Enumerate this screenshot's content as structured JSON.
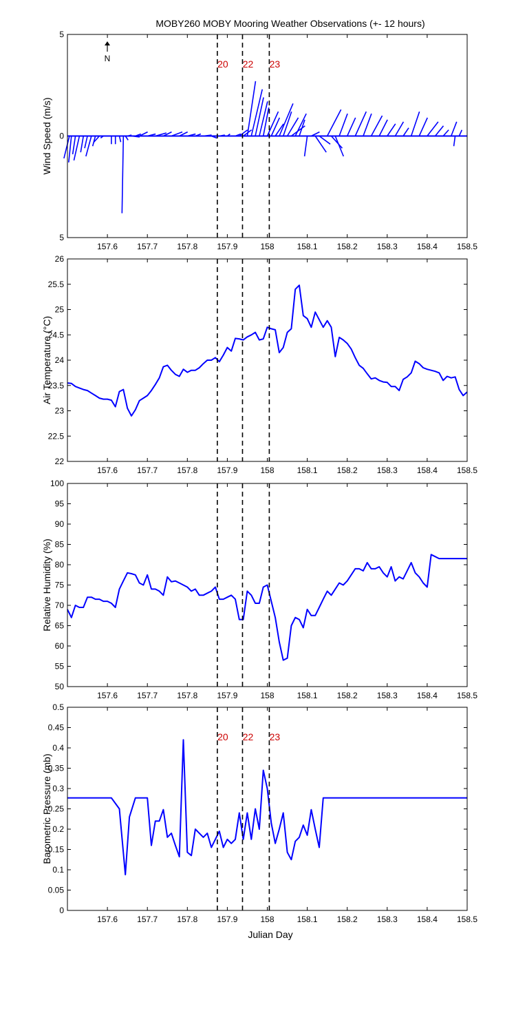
{
  "title": "MOBY260 MOBY Mooring Weather Observations (+- 12 hours)",
  "colors": {
    "series": "#0000ff",
    "marker_label": "#cc0000",
    "axis": "#000000"
  },
  "x_axis": {
    "label": "Julian Day",
    "range": [
      157.5,
      158.5
    ],
    "ticks": [
      "157.6",
      "157.7",
      "157.8",
      "157.9",
      "158",
      "158.1",
      "158.2",
      "158.3",
      "158.4",
      "158.5"
    ]
  },
  "markers": [
    {
      "x": 157.875,
      "label": "20"
    },
    {
      "x": 157.938,
      "label": "22"
    },
    {
      "x": 158.005,
      "label": "23"
    }
  ],
  "north_label": "N",
  "chart_data": [
    {
      "type": "quiver",
      "ylabel": "Wind Speed (m/s)",
      "ylim": [
        -5,
        5
      ],
      "y_tick_labels": [
        "5",
        "0",
        "5"
      ],
      "show_marker_labels": true,
      "vectors": [
        {
          "x": 157.505,
          "u": -0.2,
          "v": -1.1
        },
        {
          "x": 157.51,
          "u": -0.1,
          "v": -1.3
        },
        {
          "x": 157.52,
          "u": -0.1,
          "v": -0.9
        },
        {
          "x": 157.53,
          "u": -0.2,
          "v": -1.2
        },
        {
          "x": 157.54,
          "u": -0.1,
          "v": -0.8
        },
        {
          "x": 157.55,
          "u": -0.1,
          "v": -0.6
        },
        {
          "x": 157.56,
          "u": -0.2,
          "v": -1.0
        },
        {
          "x": 157.57,
          "u": -0.1,
          "v": -0.5
        },
        {
          "x": 157.58,
          "u": -0.2,
          "v": -0.3
        },
        {
          "x": 157.59,
          "u": -0.1,
          "v": -0.1
        },
        {
          "x": 157.6,
          "u": -0.1,
          "v": 0.0
        },
        {
          "x": 157.61,
          "u": 0.0,
          "v": -0.4
        },
        {
          "x": 157.62,
          "u": 0.0,
          "v": -0.4
        },
        {
          "x": 157.63,
          "u": 0.05,
          "v": -0.3
        },
        {
          "x": 157.64,
          "u": -0.05,
          "v": -3.8
        },
        {
          "x": 157.645,
          "u": 0.1,
          "v": -0.2
        },
        {
          "x": 157.65,
          "u": 0.15,
          "v": 0.05
        },
        {
          "x": 157.66,
          "u": 0.3,
          "v": -0.05
        },
        {
          "x": 157.67,
          "u": 0.2,
          "v": 0.1
        },
        {
          "x": 157.68,
          "u": 0.3,
          "v": 0.2
        },
        {
          "x": 157.7,
          "u": 0.3,
          "v": 0.1
        },
        {
          "x": 157.72,
          "u": 0.4,
          "v": 0.15
        },
        {
          "x": 157.74,
          "u": 0.3,
          "v": 0.2
        },
        {
          "x": 157.76,
          "u": 0.4,
          "v": 0.2
        },
        {
          "x": 157.78,
          "u": 0.3,
          "v": 0.2
        },
        {
          "x": 157.8,
          "u": 0.3,
          "v": 0.1
        },
        {
          "x": 157.82,
          "u": 0.2,
          "v": 0.1
        },
        {
          "x": 157.84,
          "u": 0.3,
          "v": 0.05
        },
        {
          "x": 157.86,
          "u": 0.2,
          "v": -0.1
        },
        {
          "x": 157.88,
          "u": 0.2,
          "v": 0.05
        },
        {
          "x": 157.9,
          "u": 0.1,
          "v": 0.1
        },
        {
          "x": 157.92,
          "u": 0.2,
          "v": 0.1
        },
        {
          "x": 157.93,
          "u": 0.3,
          "v": 0.3
        },
        {
          "x": 157.94,
          "u": 0.3,
          "v": 0.3
        },
        {
          "x": 157.95,
          "u": 0.3,
          "v": 2.7
        },
        {
          "x": 157.96,
          "u": 0.4,
          "v": 2.3
        },
        {
          "x": 157.97,
          "u": 0.3,
          "v": 1.9
        },
        {
          "x": 157.98,
          "u": 0.3,
          "v": 1.7
        },
        {
          "x": 157.99,
          "u": 0.2,
          "v": 1.4
        },
        {
          "x": 158.0,
          "u": 0.4,
          "v": 1.2
        },
        {
          "x": 158.01,
          "u": 0.3,
          "v": 0.9
        },
        {
          "x": 158.02,
          "u": 0.3,
          "v": 0.6
        },
        {
          "x": 158.03,
          "u": 0.5,
          "v": 1.6
        },
        {
          "x": 158.04,
          "u": 0.3,
          "v": 1.2
        },
        {
          "x": 158.05,
          "u": 0.4,
          "v": 0.9
        },
        {
          "x": 158.06,
          "u": 0.5,
          "v": 0.5
        },
        {
          "x": 158.07,
          "u": 0.4,
          "v": 1.1
        },
        {
          "x": 158.08,
          "u": 0.2,
          "v": 0.8
        },
        {
          "x": 158.1,
          "u": -0.1,
          "v": -1.0
        },
        {
          "x": 158.11,
          "u": 0.3,
          "v": 0.2
        },
        {
          "x": 158.12,
          "u": 0.4,
          "v": -0.8
        },
        {
          "x": 158.13,
          "u": 0.4,
          "v": -0.4
        },
        {
          "x": 158.15,
          "u": 0.5,
          "v": 1.3
        },
        {
          "x": 158.16,
          "u": 0.4,
          "v": -0.6
        },
        {
          "x": 158.17,
          "u": 0.3,
          "v": -1.0
        },
        {
          "x": 158.18,
          "u": 0.3,
          "v": 1.1
        },
        {
          "x": 158.2,
          "u": 0.3,
          "v": 0.9
        },
        {
          "x": 158.22,
          "u": 0.4,
          "v": 1.2
        },
        {
          "x": 158.24,
          "u": 0.3,
          "v": 1.1
        },
        {
          "x": 158.26,
          "u": 0.4,
          "v": 1.0
        },
        {
          "x": 158.28,
          "u": 0.3,
          "v": 0.8
        },
        {
          "x": 158.3,
          "u": 0.3,
          "v": 0.6
        },
        {
          "x": 158.32,
          "u": 0.3,
          "v": 0.7
        },
        {
          "x": 158.34,
          "u": 0.2,
          "v": 0.4
        },
        {
          "x": 158.36,
          "u": 0.3,
          "v": 1.2
        },
        {
          "x": 158.38,
          "u": 0.3,
          "v": 0.9
        },
        {
          "x": 158.4,
          "u": 0.4,
          "v": 0.7
        },
        {
          "x": 158.42,
          "u": 0.3,
          "v": 0.5
        },
        {
          "x": 158.44,
          "u": 0.2,
          "v": 0.3
        },
        {
          "x": 158.46,
          "u": 0.2,
          "v": 0.7
        },
        {
          "x": 158.47,
          "u": -0.05,
          "v": -0.5
        },
        {
          "x": 158.48,
          "u": 0.1,
          "v": 0.3
        }
      ]
    },
    {
      "type": "line",
      "ylabel": "Air Temperature (°C)",
      "ylim": [
        22,
        26
      ],
      "y_ticks": [
        "22",
        "22.5",
        "23",
        "23.5",
        "24",
        "24.5",
        "25",
        "25.5",
        "26"
      ],
      "show_marker_labels": false,
      "x": [
        157.5,
        157.51,
        157.52,
        157.53,
        157.54,
        157.55,
        157.56,
        157.57,
        157.58,
        157.59,
        157.6,
        157.61,
        157.62,
        157.63,
        157.64,
        157.65,
        157.66,
        157.67,
        157.68,
        157.69,
        157.7,
        157.71,
        157.72,
        157.73,
        157.74,
        157.75,
        157.76,
        157.77,
        157.78,
        157.79,
        157.8,
        157.81,
        157.82,
        157.83,
        157.84,
        157.85,
        157.86,
        157.87,
        157.88,
        157.89,
        157.9,
        157.91,
        157.92,
        157.93,
        157.94,
        157.95,
        157.96,
        157.97,
        157.98,
        157.99,
        158.0,
        158.01,
        158.02,
        158.03,
        158.04,
        158.05,
        158.06,
        158.07,
        158.08,
        158.09,
        158.1,
        158.11,
        158.12,
        158.13,
        158.14,
        158.15,
        158.16,
        158.17,
        158.18,
        158.19,
        158.2,
        158.21,
        158.22,
        158.23,
        158.24,
        158.25,
        158.26,
        158.27,
        158.28,
        158.29,
        158.3,
        158.31,
        158.32,
        158.33,
        158.34,
        158.35,
        158.36,
        158.37,
        158.38,
        158.39,
        158.4,
        158.41,
        158.42,
        158.43,
        158.44,
        158.45,
        158.46,
        158.47,
        158.48,
        158.49,
        158.5
      ],
      "values": [
        23.55,
        23.54,
        23.48,
        23.45,
        23.42,
        23.4,
        23.35,
        23.3,
        23.25,
        23.23,
        23.23,
        23.21,
        23.08,
        23.38,
        23.42,
        23.05,
        22.9,
        23.02,
        23.2,
        23.25,
        23.3,
        23.4,
        23.52,
        23.65,
        23.87,
        23.9,
        23.8,
        23.72,
        23.68,
        23.82,
        23.76,
        23.8,
        23.8,
        23.85,
        23.93,
        24.0,
        24.0,
        24.05,
        23.97,
        24.1,
        24.25,
        24.18,
        24.43,
        24.42,
        24.4,
        24.46,
        24.5,
        24.55,
        24.4,
        24.42,
        24.65,
        24.62,
        24.6,
        24.15,
        24.25,
        24.55,
        24.62,
        25.4,
        25.48,
        24.88,
        24.82,
        24.65,
        24.95,
        24.8,
        24.65,
        24.78,
        24.65,
        24.07,
        24.45,
        24.4,
        24.33,
        24.22,
        24.05,
        23.9,
        23.84,
        23.73,
        23.63,
        23.65,
        23.6,
        23.57,
        23.56,
        23.48,
        23.48,
        23.4,
        23.62,
        23.67,
        23.75,
        23.98,
        23.93,
        23.85,
        23.82,
        23.8,
        23.78,
        23.75,
        23.6,
        23.68,
        23.65,
        23.67,
        23.42,
        23.3,
        23.37
      ]
    },
    {
      "type": "line",
      "ylabel": "Relative Humidity (%)",
      "ylim": [
        50,
        100
      ],
      "y_ticks": [
        "50",
        "55",
        "60",
        "65",
        "70",
        "75",
        "80",
        "85",
        "90",
        "95",
        "100"
      ],
      "show_marker_labels": false,
      "x": [
        157.5,
        157.51,
        157.52,
        157.53,
        157.54,
        157.55,
        157.56,
        157.57,
        157.58,
        157.59,
        157.6,
        157.61,
        157.62,
        157.63,
        157.64,
        157.65,
        157.66,
        157.67,
        157.68,
        157.69,
        157.7,
        157.71,
        157.72,
        157.73,
        157.74,
        157.75,
        157.76,
        157.77,
        157.78,
        157.79,
        157.8,
        157.81,
        157.82,
        157.83,
        157.84,
        157.85,
        157.86,
        157.87,
        157.88,
        157.89,
        157.9,
        157.91,
        157.92,
        157.93,
        157.94,
        157.95,
        157.96,
        157.97,
        157.98,
        157.99,
        158.0,
        158.01,
        158.02,
        158.03,
        158.04,
        158.05,
        158.06,
        158.07,
        158.08,
        158.09,
        158.1,
        158.11,
        158.12,
        158.13,
        158.14,
        158.15,
        158.16,
        158.17,
        158.18,
        158.19,
        158.2,
        158.21,
        158.22,
        158.23,
        158.24,
        158.25,
        158.26,
        158.27,
        158.28,
        158.29,
        158.3,
        158.31,
        158.32,
        158.33,
        158.34,
        158.35,
        158.36,
        158.37,
        158.38,
        158.39,
        158.4,
        158.41,
        158.42,
        158.43,
        158.44,
        158.45,
        158.46,
        158.47,
        158.48,
        158.49,
        158.5
      ],
      "values": [
        69,
        67,
        70,
        69.5,
        69.5,
        72,
        72,
        71.5,
        71.5,
        71,
        71,
        70.5,
        69.5,
        74,
        76,
        78,
        77.8,
        77.5,
        75.5,
        75,
        77.5,
        74,
        74,
        73.5,
        72.5,
        77,
        75.8,
        76,
        75.5,
        75,
        74.5,
        73.5,
        74,
        72.5,
        72.5,
        73,
        73.5,
        74.5,
        71.5,
        71.5,
        72,
        72.5,
        71.5,
        66.5,
        66.5,
        73.5,
        72.5,
        70.5,
        70.5,
        74.5,
        75,
        71,
        67,
        61,
        56.5,
        57,
        65,
        67,
        66.5,
        64.5,
        69,
        67.5,
        67.5,
        69.5,
        71.5,
        73.5,
        72.5,
        74,
        75.5,
        75,
        76,
        77.5,
        79,
        79,
        78.5,
        80.5,
        79,
        79,
        79.5,
        78,
        77,
        79.5,
        76,
        77,
        76.5,
        78.5,
        80.5,
        78,
        77,
        75.5,
        74.5,
        82.5,
        82,
        81.5,
        81.5,
        81.5,
        81.5,
        81.5,
        81.5,
        81.5,
        81.5
      ]
    },
    {
      "type": "line",
      "ylabel": "Barometric Pressure (mb)",
      "ylim": [
        0,
        0.5
      ],
      "y_ticks": [
        "0",
        "0.05",
        "0.1",
        "0.15",
        "0.2",
        "0.25",
        "0.3",
        "0.35",
        "0.4",
        "0.45",
        "0.5"
      ],
      "show_marker_labels": true,
      "x": [
        157.5,
        157.61,
        157.63,
        157.645,
        157.655,
        157.67,
        157.68,
        157.69,
        157.7,
        157.71,
        157.72,
        157.73,
        157.74,
        157.75,
        157.76,
        157.77,
        157.78,
        157.79,
        157.8,
        157.81,
        157.82,
        157.83,
        157.84,
        157.85,
        157.86,
        157.87,
        157.88,
        157.89,
        157.9,
        157.91,
        157.92,
        157.93,
        157.94,
        157.95,
        157.96,
        157.97,
        157.98,
        157.99,
        158.0,
        158.01,
        158.02,
        158.03,
        158.04,
        158.05,
        158.06,
        158.07,
        158.08,
        158.09,
        158.1,
        158.11,
        158.12,
        158.13,
        158.14,
        158.15,
        158.16,
        158.17,
        158.5
      ],
      "values": [
        0.277,
        0.277,
        0.25,
        0.088,
        0.23,
        0.277,
        0.277,
        0.277,
        0.277,
        0.16,
        0.22,
        0.22,
        0.248,
        0.18,
        0.19,
        0.16,
        0.132,
        0.42,
        0.143,
        0.135,
        0.2,
        0.19,
        0.18,
        0.19,
        0.155,
        0.175,
        0.195,
        0.155,
        0.175,
        0.165,
        0.175,
        0.24,
        0.175,
        0.24,
        0.175,
        0.25,
        0.2,
        0.345,
        0.3,
        0.215,
        0.165,
        0.2,
        0.24,
        0.143,
        0.125,
        0.17,
        0.18,
        0.21,
        0.185,
        0.248,
        0.2,
        0.155,
        0.277,
        0.277,
        0.277,
        0.277,
        0.277
      ]
    }
  ]
}
